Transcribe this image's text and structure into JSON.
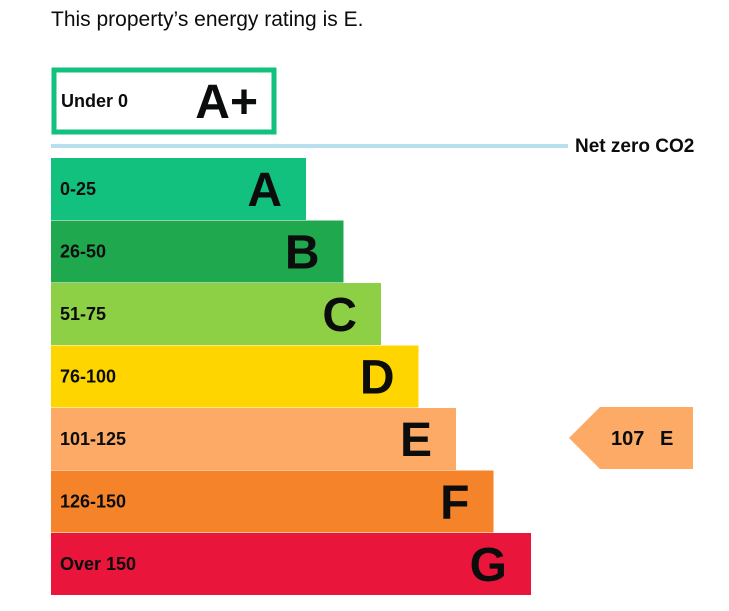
{
  "intro": "This property’s energy rating is E.",
  "top_band": {
    "range": "Under 0",
    "letter": "A+",
    "color": "#13c17f"
  },
  "net_zero": {
    "label": "Net zero CO2",
    "color": "#b8dfee"
  },
  "bands": [
    {
      "range": "0-25",
      "letter": "A",
      "color": "#13c17f"
    },
    {
      "range": "26-50",
      "letter": "B",
      "color": "#20a84f"
    },
    {
      "range": "51-75",
      "letter": "C",
      "color": "#8ed045"
    },
    {
      "range": "76-100",
      "letter": "D",
      "color": "#ffd500"
    },
    {
      "range": "101-125",
      "letter": "E",
      "color": "#fcaa65"
    },
    {
      "range": "126-150",
      "letter": "F",
      "color": "#f5832a"
    },
    {
      "range": "Over 150",
      "letter": "G",
      "color": "#e9153b"
    }
  ],
  "current": {
    "score": "107",
    "letter": "E",
    "color": "#fcaa65"
  }
}
